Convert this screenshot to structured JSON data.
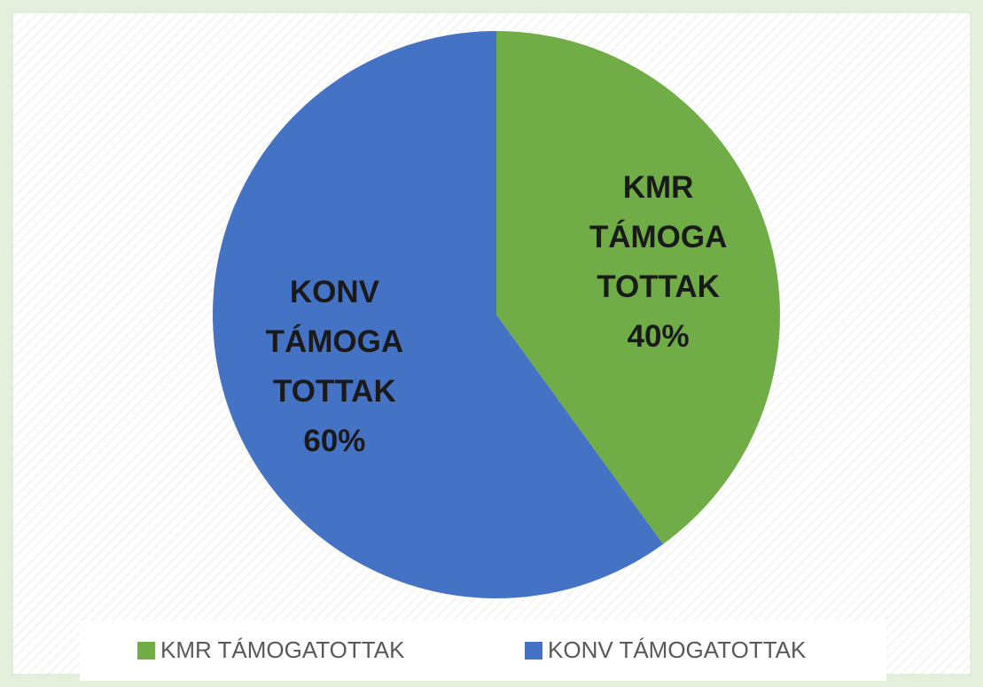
{
  "chart_data": {
    "type": "pie",
    "categories": [
      "KMR TÁMOGATOTTAK",
      "KONV TÁMOGATOTTAK"
    ],
    "values": [
      40,
      60
    ],
    "value_labels": [
      "40%",
      "60%"
    ],
    "colors": [
      "#70ad47",
      "#4472c4"
    ],
    "legend": "bottom"
  }
}
